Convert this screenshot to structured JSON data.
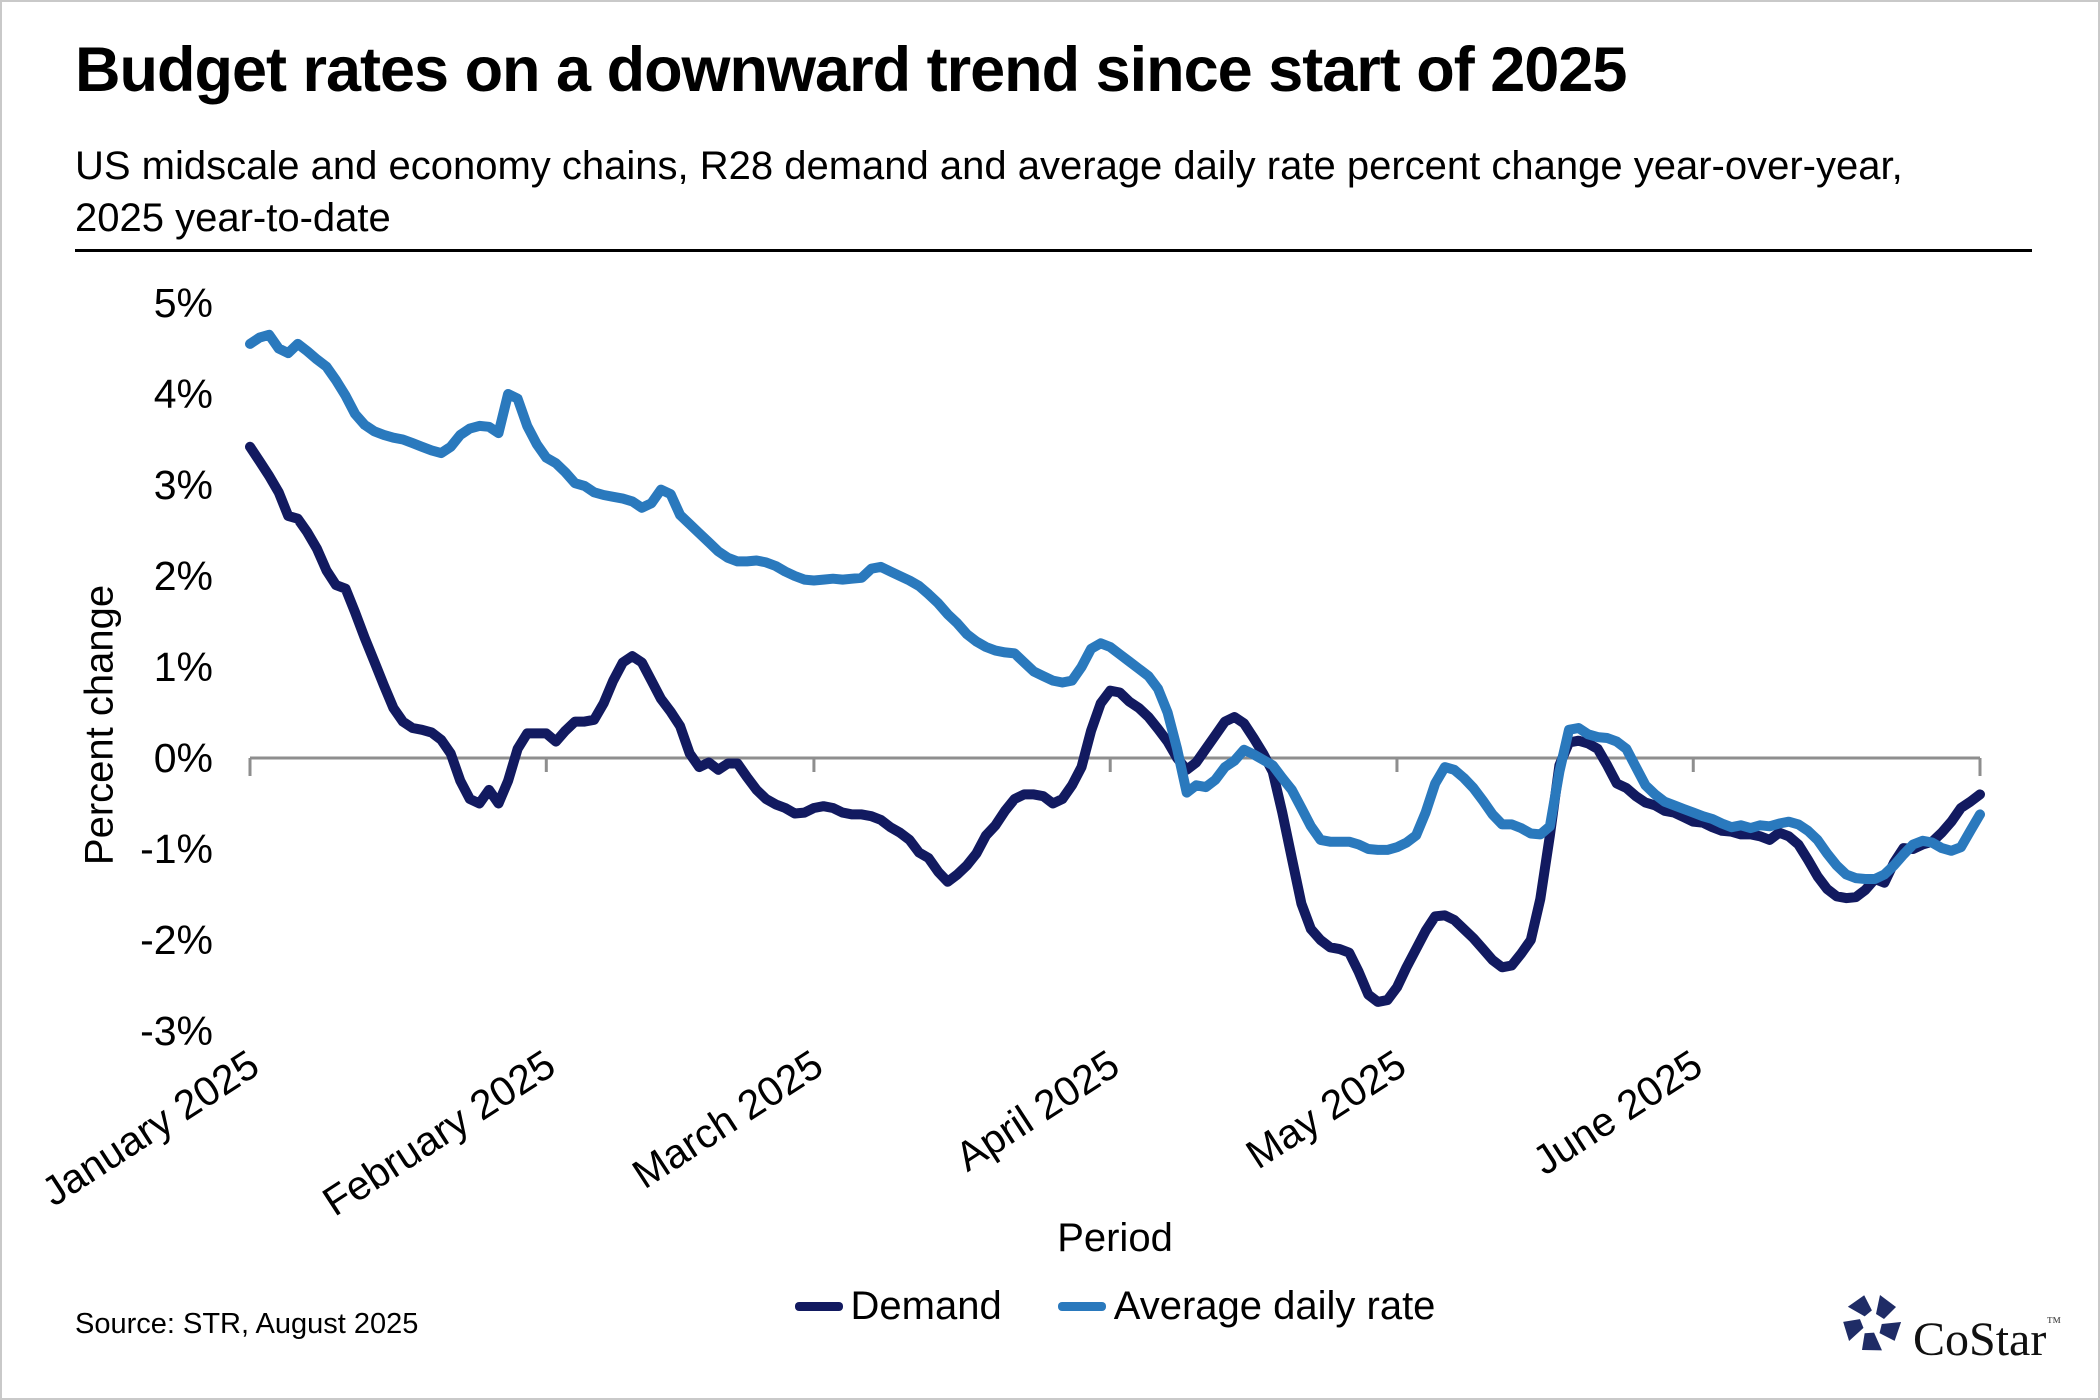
{
  "page": {
    "title": "Budget rates on a downward trend since start of 2025",
    "subtitle_line1": "US midscale and economy chains, R28 demand and average daily rate percent change year-over-year,",
    "subtitle_line2": "2025 year-to-date",
    "source": "Source: STR, August 2025",
    "brand": "CoStar",
    "brand_trademark": "™"
  },
  "colors": {
    "background": "#ffffff",
    "frame_border": "#c9c9c9",
    "axis": "#8e8e8e",
    "text": "#000000",
    "demand_line": "#121a60",
    "adr_line": "#2a79bd",
    "logo_star": "#1f2c66"
  },
  "chart_data": {
    "type": "line",
    "title": "Budget rates on a downward trend since start of 2025",
    "subtitle": "US midscale and economy chains, R28 demand and average daily rate percent change year-over-year, 2025 year-to-date",
    "xlabel": "Period",
    "ylabel": "Percent change",
    "x_start_date": "2025-01-01",
    "x_end_date": "2025-07-01",
    "frequency": "daily",
    "x_tick_labels": [
      "January 2025",
      "February 2025",
      "March 2025",
      "April 2025",
      "May 2025",
      "June 2025"
    ],
    "x_tick_day_offsets": [
      0,
      31,
      59,
      90,
      120,
      151
    ],
    "axis_end_day": 181,
    "y_tick_labels": [
      "5%",
      "4%",
      "3%",
      "2%",
      "1%",
      "0%",
      "-1%",
      "-2%",
      "-3%"
    ],
    "y_tick_values": [
      5,
      4,
      3,
      2,
      1,
      0,
      -1,
      -2,
      -3
    ],
    "ylim": [
      -3.5,
      5.2
    ],
    "grid": "zero-line-only",
    "legend_position": "bottom-center",
    "series": [
      {
        "name": "Demand",
        "color": "#121a60",
        "values": [
          3.42,
          3.26,
          3.1,
          2.92,
          2.66,
          2.63,
          2.48,
          2.3,
          2.06,
          1.9,
          1.86,
          1.6,
          1.32,
          1.06,
          0.8,
          0.55,
          0.4,
          0.33,
          0.31,
          0.28,
          0.2,
          0.05,
          -0.25,
          -0.45,
          -0.5,
          -0.35,
          -0.5,
          -0.25,
          0.1,
          0.27,
          0.27,
          0.27,
          0.18,
          0.3,
          0.4,
          0.4,
          0.42,
          0.6,
          0.85,
          1.05,
          1.12,
          1.05,
          0.85,
          0.65,
          0.51,
          0.35,
          0.05,
          -0.1,
          -0.05,
          -0.13,
          -0.06,
          -0.06,
          -0.21,
          -0.35,
          -0.45,
          -0.51,
          -0.55,
          -0.61,
          -0.6,
          -0.55,
          -0.53,
          -0.55,
          -0.6,
          -0.62,
          -0.62,
          -0.64,
          -0.68,
          -0.76,
          -0.82,
          -0.9,
          -1.04,
          -1.1,
          -1.25,
          -1.36,
          -1.28,
          -1.18,
          -1.05,
          -0.85,
          -0.74,
          -0.58,
          -0.45,
          -0.4,
          -0.4,
          -0.42,
          -0.5,
          -0.45,
          -0.3,
          -0.1,
          0.3,
          0.6,
          0.74,
          0.72,
          0.62,
          0.55,
          0.45,
          0.32,
          0.18,
          0.0,
          -0.13,
          -0.05,
          0.1,
          0.25,
          0.4,
          0.45,
          0.38,
          0.22,
          0.05,
          -0.15,
          -0.6,
          -1.1,
          -1.6,
          -1.88,
          -2.0,
          -2.08,
          -2.1,
          -2.14,
          -2.35,
          -2.6,
          -2.68,
          -2.66,
          -2.52,
          -2.3,
          -2.1,
          -1.9,
          -1.74,
          -1.73,
          -1.78,
          -1.88,
          -1.98,
          -2.1,
          -2.22,
          -2.3,
          -2.28,
          -2.15,
          -2.0,
          -1.55,
          -0.85,
          -0.08,
          0.17,
          0.19,
          0.16,
          0.1,
          -0.08,
          -0.28,
          -0.33,
          -0.42,
          -0.49,
          -0.52,
          -0.58,
          -0.6,
          -0.65,
          -0.7,
          -0.71,
          -0.76,
          -0.8,
          -0.81,
          -0.84,
          -0.84,
          -0.86,
          -0.9,
          -0.82,
          -0.86,
          -0.95,
          -1.12,
          -1.3,
          -1.44,
          -1.52,
          -1.54,
          -1.53,
          -1.45,
          -1.33,
          -1.37,
          -1.15,
          -0.99,
          -1.0,
          -0.95,
          -0.92,
          -0.82,
          -0.7,
          -0.55,
          -0.48,
          -0.4
        ]
      },
      {
        "name": "Average daily rate",
        "color": "#2a79bd",
        "values": [
          4.55,
          4.62,
          4.65,
          4.5,
          4.45,
          4.55,
          4.47,
          4.38,
          4.3,
          4.15,
          3.98,
          3.78,
          3.66,
          3.59,
          3.55,
          3.52,
          3.5,
          3.46,
          3.42,
          3.38,
          3.35,
          3.42,
          3.55,
          3.62,
          3.65,
          3.64,
          3.57,
          4.0,
          3.95,
          3.65,
          3.45,
          3.3,
          3.24,
          3.14,
          3.02,
          2.99,
          2.92,
          2.89,
          2.87,
          2.85,
          2.82,
          2.75,
          2.8,
          2.95,
          2.9,
          2.67,
          2.57,
          2.47,
          2.37,
          2.27,
          2.2,
          2.16,
          2.16,
          2.17,
          2.15,
          2.11,
          2.05,
          2.0,
          1.96,
          1.95,
          1.96,
          1.97,
          1.96,
          1.97,
          1.98,
          2.08,
          2.1,
          2.05,
          2.0,
          1.95,
          1.89,
          1.8,
          1.7,
          1.58,
          1.48,
          1.36,
          1.28,
          1.22,
          1.18,
          1.16,
          1.15,
          1.05,
          0.95,
          0.9,
          0.85,
          0.83,
          0.85,
          1.0,
          1.2,
          1.26,
          1.22,
          1.14,
          1.06,
          0.98,
          0.9,
          0.76,
          0.5,
          0.1,
          -0.38,
          -0.3,
          -0.32,
          -0.24,
          -0.1,
          -0.03,
          0.09,
          0.04,
          -0.02,
          -0.08,
          -0.22,
          -0.35,
          -0.55,
          -0.75,
          -0.9,
          -0.92,
          -0.92,
          -0.92,
          -0.95,
          -1.0,
          -1.01,
          -1.01,
          -0.98,
          -0.93,
          -0.85,
          -0.6,
          -0.28,
          -0.1,
          -0.13,
          -0.22,
          -0.33,
          -0.47,
          -0.62,
          -0.73,
          -0.73,
          -0.77,
          -0.83,
          -0.84,
          -0.75,
          -0.15,
          0.31,
          0.33,
          0.26,
          0.23,
          0.22,
          0.18,
          0.1,
          -0.1,
          -0.3,
          -0.4,
          -0.48,
          -0.52,
          -0.56,
          -0.6,
          -0.64,
          -0.67,
          -0.72,
          -0.76,
          -0.74,
          -0.77,
          -0.74,
          -0.75,
          -0.72,
          -0.7,
          -0.73,
          -0.8,
          -0.9,
          -1.05,
          -1.18,
          -1.28,
          -1.32,
          -1.33,
          -1.33,
          -1.28,
          -1.18,
          -1.06,
          -0.95,
          -0.91,
          -0.93,
          -0.99,
          -1.02,
          -0.98,
          -0.8,
          -0.62
        ]
      }
    ]
  }
}
